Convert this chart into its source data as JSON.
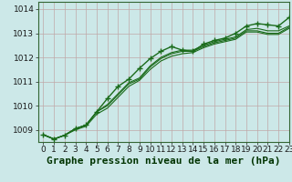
{
  "title": "Graphe pression niveau de la mer (hPa)",
  "background_color": "#cce8e8",
  "plot_bg_color": "#cce8e8",
  "grid_color": "#c0a8a8",
  "line_color": "#1a6b1a",
  "xlim": [
    -0.5,
    23
  ],
  "ylim": [
    1008.5,
    1014.3
  ],
  "xticks": [
    0,
    1,
    2,
    3,
    4,
    5,
    6,
    7,
    8,
    9,
    10,
    11,
    12,
    13,
    14,
    15,
    16,
    17,
    18,
    19,
    20,
    21,
    22,
    23
  ],
  "yticks": [
    1009,
    1010,
    1011,
    1012,
    1013,
    1014
  ],
  "series": [
    [
      1008.8,
      1008.62,
      1008.78,
      1009.05,
      1009.2,
      1009.75,
      1010.3,
      1010.8,
      1011.1,
      1011.55,
      1011.95,
      1012.25,
      1012.45,
      1012.3,
      1012.25,
      1012.55,
      1012.7,
      1012.8,
      1013.0,
      1013.3,
      1013.4,
      1013.35,
      1013.3,
      1013.65
    ],
    [
      1008.8,
      1008.62,
      1008.78,
      1009.05,
      1009.2,
      1009.75,
      1010.05,
      1010.5,
      1010.95,
      1011.15,
      1011.65,
      1012.0,
      1012.2,
      1012.3,
      1012.3,
      1012.5,
      1012.65,
      1012.75,
      1012.85,
      1013.15,
      1013.2,
      1013.1,
      1013.1,
      1013.3
    ],
    [
      1008.8,
      1008.62,
      1008.78,
      1009.05,
      1009.2,
      1009.75,
      1010.0,
      1010.45,
      1010.9,
      1011.1,
      1011.6,
      1011.95,
      1012.15,
      1012.25,
      1012.25,
      1012.45,
      1012.6,
      1012.7,
      1012.8,
      1013.1,
      1013.1,
      1013.0,
      1013.0,
      1013.25
    ],
    [
      1008.8,
      1008.62,
      1008.78,
      1009.0,
      1009.15,
      1009.65,
      1009.9,
      1010.35,
      1010.8,
      1011.05,
      1011.5,
      1011.85,
      1012.05,
      1012.15,
      1012.2,
      1012.4,
      1012.55,
      1012.65,
      1012.75,
      1013.05,
      1013.05,
      1012.95,
      1012.95,
      1013.2
    ]
  ],
  "marker_series_index": 0,
  "title_fontsize": 8,
  "tick_fontsize": 6.5,
  "spine_color": "#336633"
}
